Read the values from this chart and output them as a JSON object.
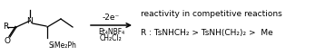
{
  "bg_color": "#ffffff",
  "arrow_above": "-2e⁻",
  "arrow_below1": "Et₄NBF₄",
  "arrow_below2": "CH₂Cl₂",
  "right_line1": "reactivity in competitive reactions",
  "right_line2": "R : TsNHCH₂ > TsNH(CH₂)₂ >  Me",
  "fig_width": 3.58,
  "fig_height": 0.61,
  "dpi": 100
}
